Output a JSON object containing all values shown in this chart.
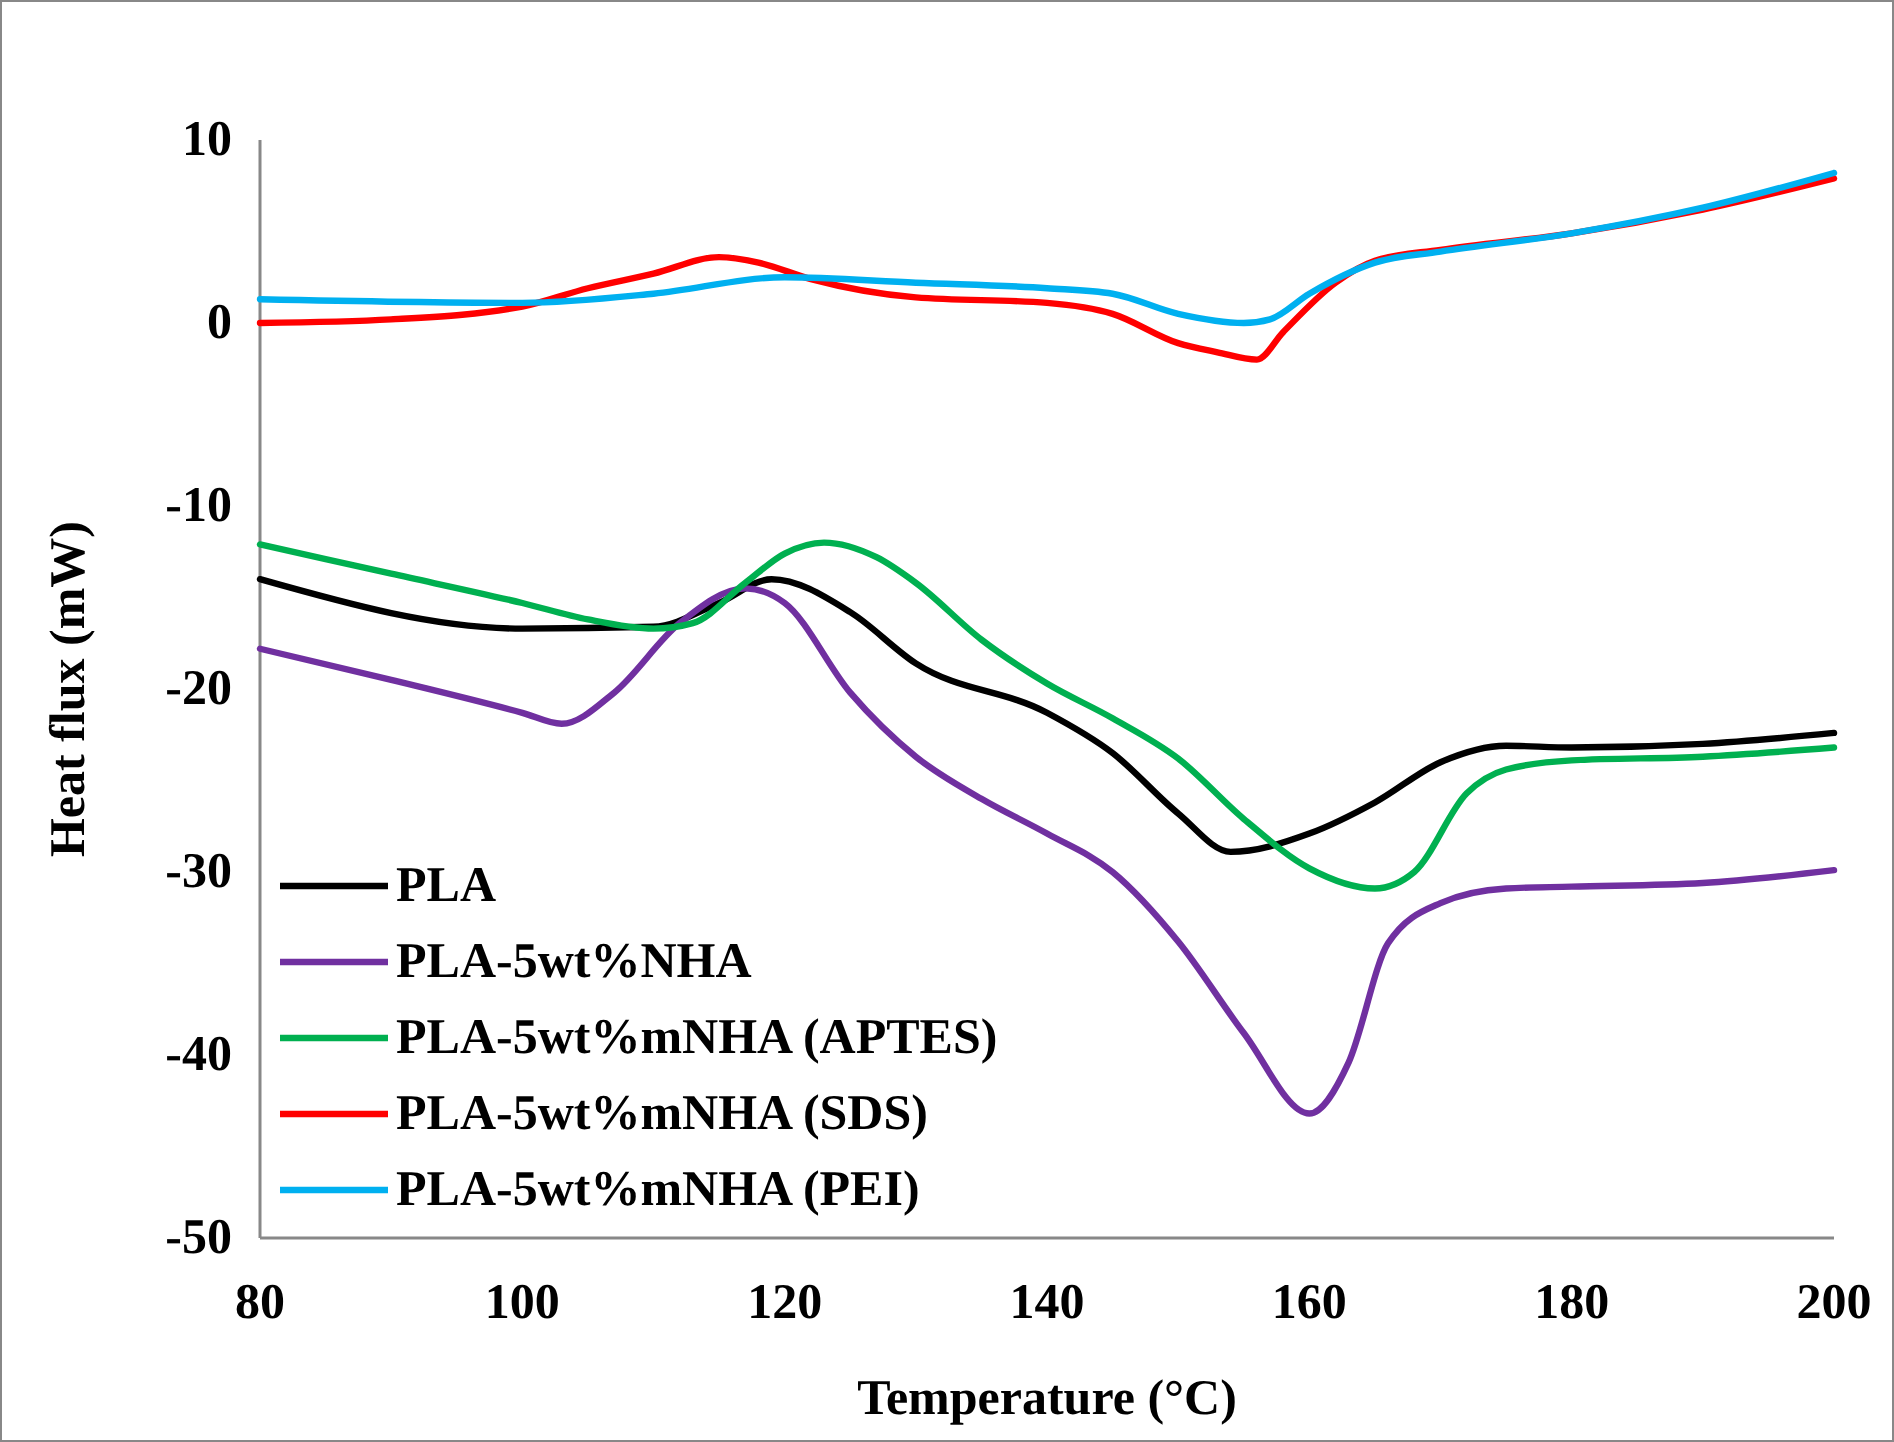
{
  "chart_data": {
    "type": "line",
    "xlabel": "Temperature (°C)",
    "ylabel": "Heat flux (mW)",
    "xlim": [
      80,
      200
    ],
    "xticks": [
      80,
      100,
      120,
      140,
      160,
      180,
      200
    ],
    "ylim": [
      -50,
      10
    ],
    "yticks": [
      -50,
      -40,
      -30,
      -20,
      -10,
      0,
      10
    ],
    "grid": false,
    "legend": "bottom left",
    "marker": "none",
    "line_style": "solid",
    "series": [
      {
        "name": "PLA",
        "color": "#000000",
        "x": [
          80,
          100,
          110,
          115,
          119,
          125,
          130,
          140,
          145,
          150,
          154,
          160,
          165,
          170,
          175,
          180,
          190,
          200
        ],
        "values": [
          -14.0,
          -16.7,
          -16.6,
          -15.3,
          -14.0,
          -15.8,
          -18.6,
          -21.3,
          -23.5,
          -26.8,
          -28.9,
          -27.9,
          -26.2,
          -24.0,
          -23.1,
          -23.2,
          -23.0,
          -22.4
        ]
      },
      {
        "name": "PLA-5wt%NHA",
        "color": "#7030a0",
        "x": [
          80,
          90,
          100,
          103,
          107,
          112,
          117,
          120,
          125,
          130,
          135,
          140,
          145,
          150,
          155,
          160,
          163,
          166,
          170,
          175,
          180,
          190,
          200
        ],
        "values": [
          -17.8,
          -19.5,
          -21.3,
          -21.9,
          -20.2,
          -16.4,
          -14.5,
          -15.3,
          -20.2,
          -23.7,
          -26.0,
          -27.9,
          -30.0,
          -33.8,
          -38.8,
          -43.2,
          -40.4,
          -33.9,
          -31.7,
          -30.9,
          -30.8,
          -30.6,
          -29.9
        ]
      },
      {
        "name": "PLA-5wt%mNHA (APTES)",
        "color": "#00b050",
        "x": [
          80,
          90,
          100,
          105,
          110,
          113,
          117,
          120,
          123,
          127,
          130,
          135,
          140,
          145,
          150,
          155,
          160,
          165,
          168,
          172,
          175,
          180,
          190,
          200
        ],
        "values": [
          -12.1,
          -13.7,
          -15.3,
          -16.2,
          -16.7,
          -16.4,
          -14.2,
          -12.6,
          -12.0,
          -12.8,
          -14.2,
          -17.3,
          -19.7,
          -21.6,
          -23.8,
          -27.1,
          -29.8,
          -30.9,
          -30.0,
          -25.7,
          -24.4,
          -23.9,
          -23.7,
          -23.2
        ]
      },
      {
        "name": "PLA-5wt%mNHA (SDS)",
        "color": "#ff0000",
        "x": [
          80,
          90,
          100,
          105,
          110,
          115,
          118,
          122,
          130,
          140,
          145,
          150,
          153,
          156,
          158,
          162,
          165,
          170,
          180,
          190,
          200
        ],
        "values": [
          0.0,
          0.2,
          0.9,
          1.9,
          2.7,
          3.6,
          3.3,
          2.4,
          1.4,
          1.1,
          0.5,
          -1.1,
          -1.6,
          -2.0,
          -0.5,
          2.2,
          3.4,
          4.0,
          4.9,
          6.2,
          7.9
        ]
      },
      {
        "name": "PLA-5wt%mNHA (PEI)",
        "color": "#00b0f0",
        "x": [
          80,
          100,
          110,
          120,
          130,
          140,
          145,
          150,
          155,
          157,
          160,
          165,
          170,
          180,
          190,
          200
        ],
        "values": [
          1.3,
          1.1,
          1.6,
          2.5,
          2.2,
          1.9,
          1.6,
          0.5,
          0.0,
          0.2,
          1.6,
          3.3,
          3.9,
          4.9,
          6.3,
          8.2
        ]
      }
    ]
  }
}
